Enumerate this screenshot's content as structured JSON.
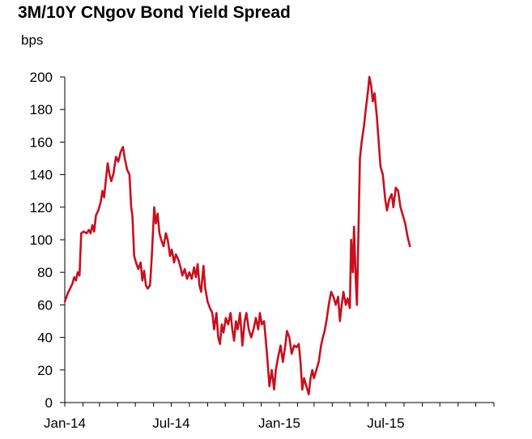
{
  "chart_data": {
    "type": "line",
    "title": "3M/10Y CNgov Bond Yield Spread",
    "ylabel": "bps",
    "xlabel": "",
    "ylim": [
      0,
      200
    ],
    "yticks": [
      0,
      20,
      40,
      60,
      80,
      100,
      120,
      140,
      160,
      180,
      200
    ],
    "xlim": [
      "2014-01-01",
      "2016-01-01"
    ],
    "xticks": [
      {
        "date": "2014-01-01",
        "label": "Jan-14"
      },
      {
        "date": "2014-07-01",
        "label": "Jul-14"
      },
      {
        "date": "2015-01-01",
        "label": "Jan-15"
      },
      {
        "date": "2015-07-01",
        "label": "Jul-15"
      }
    ],
    "grid": false,
    "legend": "none",
    "line_color": "#c8101e",
    "series": [
      {
        "name": "",
        "points": [
          [
            "2014-01-01",
            62
          ],
          [
            "2014-01-06",
            67
          ],
          [
            "2014-01-10",
            70
          ],
          [
            "2014-01-14",
            73
          ],
          [
            "2014-01-17",
            77
          ],
          [
            "2014-01-20",
            75
          ],
          [
            "2014-01-23",
            80
          ],
          [
            "2014-01-26",
            78
          ],
          [
            "2014-01-29",
            104
          ],
          [
            "2014-02-02",
            105
          ],
          [
            "2014-02-07",
            104
          ],
          [
            "2014-02-11",
            106
          ],
          [
            "2014-02-14",
            104
          ],
          [
            "2014-02-17",
            109
          ],
          [
            "2014-02-20",
            105
          ],
          [
            "2014-02-23",
            115
          ],
          [
            "2014-02-27",
            118
          ],
          [
            "2014-03-03",
            123
          ],
          [
            "2014-03-06",
            130
          ],
          [
            "2014-03-09",
            126
          ],
          [
            "2014-03-12",
            137
          ],
          [
            "2014-03-15",
            147
          ],
          [
            "2014-03-18",
            140
          ],
          [
            "2014-03-21",
            136
          ],
          [
            "2014-03-25",
            141
          ],
          [
            "2014-03-29",
            151
          ],
          [
            "2014-04-02",
            148
          ],
          [
            "2014-04-06",
            154
          ],
          [
            "2014-04-10",
            157
          ],
          [
            "2014-04-13",
            150
          ],
          [
            "2014-04-17",
            143
          ],
          [
            "2014-04-21",
            140
          ],
          [
            "2014-04-24",
            120
          ],
          [
            "2014-04-26",
            115
          ],
          [
            "2014-04-29",
            90
          ],
          [
            "2014-05-03",
            85
          ],
          [
            "2014-05-06",
            82
          ],
          [
            "2014-05-10",
            86
          ],
          [
            "2014-05-13",
            75
          ],
          [
            "2014-05-16",
            81
          ],
          [
            "2014-05-19",
            72
          ],
          [
            "2014-05-22",
            70
          ],
          [
            "2014-05-26",
            72
          ],
          [
            "2014-05-29",
            90
          ],
          [
            "2014-06-02",
            120
          ],
          [
            "2014-06-05",
            110
          ],
          [
            "2014-06-08",
            116
          ],
          [
            "2014-06-11",
            104
          ],
          [
            "2014-06-14",
            100
          ],
          [
            "2014-06-18",
            96
          ],
          [
            "2014-06-22",
            104
          ],
          [
            "2014-06-25",
            100
          ],
          [
            "2014-06-29",
            90
          ],
          [
            "2014-07-02",
            94
          ],
          [
            "2014-07-06",
            86
          ],
          [
            "2014-07-09",
            91
          ],
          [
            "2014-07-13",
            88
          ],
          [
            "2014-07-17",
            83
          ],
          [
            "2014-07-20",
            78
          ],
          [
            "2014-07-24",
            82
          ],
          [
            "2014-07-28",
            76
          ],
          [
            "2014-08-01",
            80
          ],
          [
            "2014-08-05",
            76
          ],
          [
            "2014-08-09",
            83
          ],
          [
            "2014-08-12",
            77
          ],
          [
            "2014-08-15",
            85
          ],
          [
            "2014-08-18",
            72
          ],
          [
            "2014-08-21",
            68
          ],
          [
            "2014-08-25",
            84
          ],
          [
            "2014-08-28",
            70
          ],
          [
            "2014-09-01",
            62
          ],
          [
            "2014-09-05",
            58
          ],
          [
            "2014-09-09",
            55
          ],
          [
            "2014-09-12",
            45
          ],
          [
            "2014-09-16",
            55
          ],
          [
            "2014-09-19",
            40
          ],
          [
            "2014-09-22",
            36
          ],
          [
            "2014-09-25",
            48
          ],
          [
            "2014-09-28",
            43
          ],
          [
            "2014-10-02",
            52
          ],
          [
            "2014-10-06",
            48
          ],
          [
            "2014-10-10",
            55
          ],
          [
            "2014-10-13",
            45
          ],
          [
            "2014-10-16",
            38
          ],
          [
            "2014-10-19",
            50
          ],
          [
            "2014-10-22",
            45
          ],
          [
            "2014-10-26",
            55
          ],
          [
            "2014-10-30",
            35
          ],
          [
            "2014-11-03",
            50
          ],
          [
            "2014-11-06",
            55
          ],
          [
            "2014-11-10",
            45
          ],
          [
            "2014-11-14",
            40
          ],
          [
            "2014-11-18",
            45
          ],
          [
            "2014-11-22",
            52
          ],
          [
            "2014-11-26",
            45
          ],
          [
            "2014-11-29",
            55
          ],
          [
            "2014-12-02",
            48
          ],
          [
            "2014-12-06",
            50
          ],
          [
            "2014-12-09",
            38
          ],
          [
            "2014-12-12",
            25
          ],
          [
            "2014-12-15",
            10
          ],
          [
            "2014-12-19",
            20
          ],
          [
            "2014-12-23",
            8
          ],
          [
            "2014-12-26",
            20
          ],
          [
            "2014-12-30",
            28
          ],
          [
            "2015-01-03",
            35
          ],
          [
            "2015-01-07",
            25
          ],
          [
            "2015-01-11",
            35
          ],
          [
            "2015-01-14",
            44
          ],
          [
            "2015-01-18",
            40
          ],
          [
            "2015-01-22",
            30
          ],
          [
            "2015-01-26",
            35
          ],
          [
            "2015-01-30",
            34
          ],
          [
            "2015-02-03",
            36
          ],
          [
            "2015-02-06",
            25
          ],
          [
            "2015-02-09",
            8
          ],
          [
            "2015-02-12",
            15
          ],
          [
            "2015-02-16",
            10
          ],
          [
            "2015-02-20",
            5
          ],
          [
            "2015-02-23",
            15
          ],
          [
            "2015-02-26",
            20
          ],
          [
            "2015-03-01",
            15
          ],
          [
            "2015-03-05",
            20
          ],
          [
            "2015-03-09",
            25
          ],
          [
            "2015-03-13",
            35
          ],
          [
            "2015-03-16",
            40
          ],
          [
            "2015-03-19",
            44
          ],
          [
            "2015-03-22",
            50
          ],
          [
            "2015-03-26",
            60
          ],
          [
            "2015-03-30",
            68
          ],
          [
            "2015-04-03",
            65
          ],
          [
            "2015-04-07",
            60
          ],
          [
            "2015-04-11",
            65
          ],
          [
            "2015-04-14",
            50
          ],
          [
            "2015-04-17",
            60
          ],
          [
            "2015-04-20",
            68
          ],
          [
            "2015-04-24",
            60
          ],
          [
            "2015-04-27",
            64
          ],
          [
            "2015-05-01",
            58
          ],
          [
            "2015-05-03",
            100
          ],
          [
            "2015-05-06",
            80
          ],
          [
            "2015-05-08",
            108
          ],
          [
            "2015-05-11",
            75
          ],
          [
            "2015-05-13",
            60
          ],
          [
            "2015-05-15",
            95
          ],
          [
            "2015-05-18",
            150
          ],
          [
            "2015-05-21",
            160
          ],
          [
            "2015-05-25",
            170
          ],
          [
            "2015-05-28",
            180
          ],
          [
            "2015-06-01",
            192
          ],
          [
            "2015-06-03",
            200
          ],
          [
            "2015-06-06",
            195
          ],
          [
            "2015-06-09",
            185
          ],
          [
            "2015-06-12",
            190
          ],
          [
            "2015-06-16",
            175
          ],
          [
            "2015-06-19",
            160
          ],
          [
            "2015-06-22",
            145
          ],
          [
            "2015-06-26",
            140
          ],
          [
            "2015-06-30",
            125
          ],
          [
            "2015-07-03",
            118
          ],
          [
            "2015-07-07",
            125
          ],
          [
            "2015-07-11",
            128
          ],
          [
            "2015-07-14",
            120
          ],
          [
            "2015-07-18",
            132
          ],
          [
            "2015-07-22",
            130
          ],
          [
            "2015-07-26",
            120
          ],
          [
            "2015-07-30",
            115
          ],
          [
            "2015-08-03",
            110
          ],
          [
            "2015-08-07",
            102
          ],
          [
            "2015-08-11",
            96
          ]
        ]
      }
    ]
  }
}
